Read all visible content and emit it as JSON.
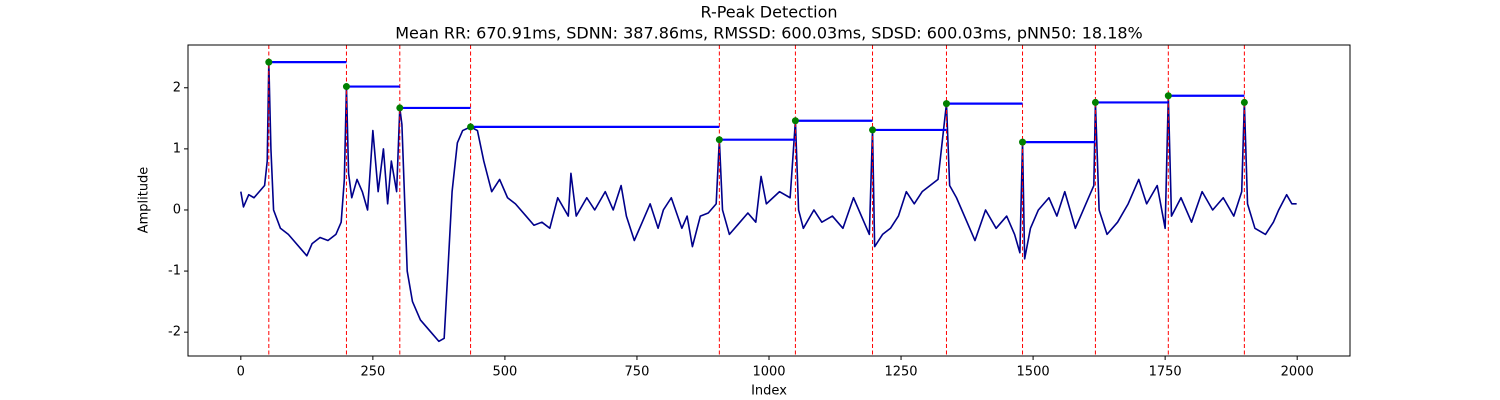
{
  "chart_data": {
    "type": "line",
    "title": "R-Peak Detection",
    "subtitle": "Mean RR: 670.91ms, SDNN: 387.86ms, RMSSD: 600.03ms, SDSD: 600.03ms, pNN50: 18.18%",
    "x_label": "Index",
    "y_label": "Amplitude",
    "xlim": [
      -100,
      2100
    ],
    "ylim": [
      -2.39,
      2.7
    ],
    "xticks": [
      0,
      250,
      500,
      750,
      1000,
      1250,
      1500,
      1750,
      2000
    ],
    "yticks": [
      -2,
      -1,
      0,
      1,
      2
    ],
    "grid": false,
    "series": [
      {
        "color": "#00008b",
        "x": [
          0,
          5,
          15,
          25,
          35,
          45,
          50,
          53,
          57,
          62,
          75,
          90,
          100,
          115,
          125,
          135,
          150,
          165,
          180,
          190,
          196,
          200,
          204,
          210,
          220,
          230,
          240,
          250,
          260,
          270,
          278,
          285,
          295,
          301,
          305,
          315,
          325,
          340,
          360,
          375,
          385,
          392,
          400,
          410,
          420,
          435,
          448,
          460,
          475,
          490,
          505,
          520,
          540,
          555,
          570,
          585,
          600,
          620,
          625,
          635,
          655,
          670,
          690,
          705,
          720,
          730,
          745,
          760,
          775,
          790,
          800,
          815,
          835,
          845,
          855,
          870,
          885,
          900,
          906,
          912,
          925,
          945,
          960,
          975,
          985,
          995,
          1020,
          1040,
          1050,
          1056,
          1065,
          1085,
          1100,
          1120,
          1140,
          1160,
          1180,
          1190,
          1196,
          1200,
          1215,
          1230,
          1245,
          1260,
          1275,
          1290,
          1305,
          1320,
          1336,
          1342,
          1355,
          1375,
          1390,
          1410,
          1430,
          1450,
          1465,
          1475,
          1480,
          1484,
          1495,
          1510,
          1530,
          1545,
          1560,
          1580,
          1600,
          1615,
          1618,
          1625,
          1640,
          1660,
          1680,
          1700,
          1715,
          1735,
          1750,
          1756,
          1762,
          1780,
          1800,
          1820,
          1840,
          1860,
          1880,
          1895,
          1900,
          1906,
          1920,
          1940,
          1955,
          1965,
          1980,
          1990,
          1999
        ],
        "values": [
          0.3,
          0.05,
          0.25,
          0.2,
          0.3,
          0.4,
          0.8,
          2.42,
          1.0,
          0.0,
          -0.3,
          -0.4,
          -0.5,
          -0.65,
          -0.75,
          -0.55,
          -0.45,
          -0.5,
          -0.4,
          -0.2,
          0.5,
          2.02,
          0.6,
          0.2,
          0.5,
          0.3,
          0.0,
          1.3,
          0.3,
          1.0,
          0.1,
          0.8,
          0.3,
          1.67,
          1.4,
          -1.0,
          -1.5,
          -1.8,
          -2.0,
          -2.15,
          -2.1,
          -1.0,
          0.3,
          1.1,
          1.3,
          1.36,
          1.3,
          0.8,
          0.3,
          0.5,
          0.2,
          0.1,
          -0.1,
          -0.25,
          -0.2,
          -0.3,
          0.2,
          -0.1,
          0.6,
          -0.1,
          0.2,
          0.0,
          0.3,
          0.0,
          0.4,
          -0.1,
          -0.5,
          -0.2,
          0.1,
          -0.3,
          0.0,
          0.2,
          -0.3,
          -0.1,
          -0.6,
          -0.1,
          -0.05,
          0.1,
          1.15,
          0.0,
          -0.4,
          -0.2,
          -0.05,
          -0.2,
          0.55,
          0.1,
          0.3,
          0.2,
          1.46,
          0.0,
          -0.3,
          0.0,
          -0.2,
          -0.1,
          -0.3,
          0.2,
          -0.2,
          -0.4,
          1.31,
          -0.6,
          -0.4,
          -0.3,
          -0.1,
          0.3,
          0.1,
          0.3,
          0.4,
          0.5,
          1.74,
          0.4,
          0.2,
          -0.2,
          -0.5,
          0.0,
          -0.3,
          -0.1,
          -0.4,
          -0.7,
          1.11,
          -0.8,
          -0.3,
          0.0,
          0.2,
          -0.1,
          0.3,
          -0.3,
          0.1,
          0.4,
          1.76,
          0.0,
          -0.4,
          -0.2,
          0.1,
          0.5,
          0.1,
          0.4,
          -0.3,
          1.87,
          -0.1,
          0.2,
          -0.2,
          0.3,
          0.0,
          0.2,
          -0.1,
          0.3,
          1.76,
          0.1,
          -0.3,
          -0.4,
          -0.2,
          0.0,
          0.25,
          0.1,
          0.1
        ]
      }
    ],
    "peaks": {
      "color": "green",
      "line_color": "red",
      "interval_color": "blue",
      "x": [
        53,
        200,
        301,
        435,
        906,
        1050,
        1196,
        1336,
        1480,
        1618,
        1756,
        1900
      ],
      "values": [
        2.42,
        2.02,
        1.67,
        1.36,
        1.15,
        1.46,
        1.31,
        1.74,
        1.11,
        1.76,
        1.87,
        1.76
      ]
    }
  }
}
